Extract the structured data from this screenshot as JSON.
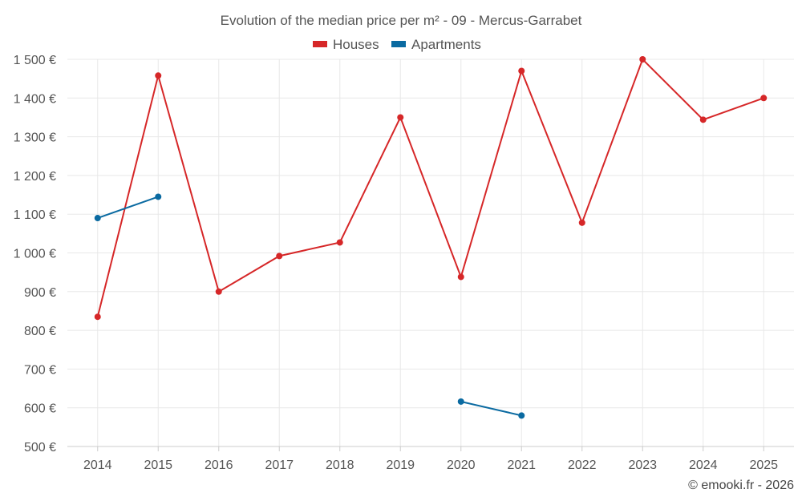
{
  "chart_data": {
    "type": "line",
    "title": "Evolution of the median price per m² - 09 - Mercus-Garrabet",
    "categories": [
      "2014",
      "2015",
      "2016",
      "2017",
      "2018",
      "2019",
      "2020",
      "2021",
      "2022",
      "2023",
      "2024",
      "2025"
    ],
    "ylim": [
      500,
      1500
    ],
    "yticks": [
      500,
      600,
      700,
      800,
      900,
      1000,
      1100,
      1200,
      1300,
      1400,
      1500
    ],
    "ytick_labels": [
      "500 €",
      "600 €",
      "700 €",
      "800 €",
      "900 €",
      "1 000 €",
      "1 100 €",
      "1 200 €",
      "1 300 €",
      "1 400 €",
      "1 500 €"
    ],
    "grid": true,
    "legend_position": "top-center",
    "series": [
      {
        "name": "Houses",
        "color": "#d62728",
        "values": [
          835,
          1458,
          900,
          992,
          1027,
          1350,
          938,
          1470,
          1078,
          1500,
          1344,
          1400
        ]
      },
      {
        "name": "Apartments",
        "color": "#0a6aa1",
        "values": [
          1090,
          1145,
          null,
          null,
          null,
          null,
          616,
          580,
          null,
          null,
          null,
          null
        ]
      }
    ]
  },
  "credit": "© emooki.fr - 2026"
}
